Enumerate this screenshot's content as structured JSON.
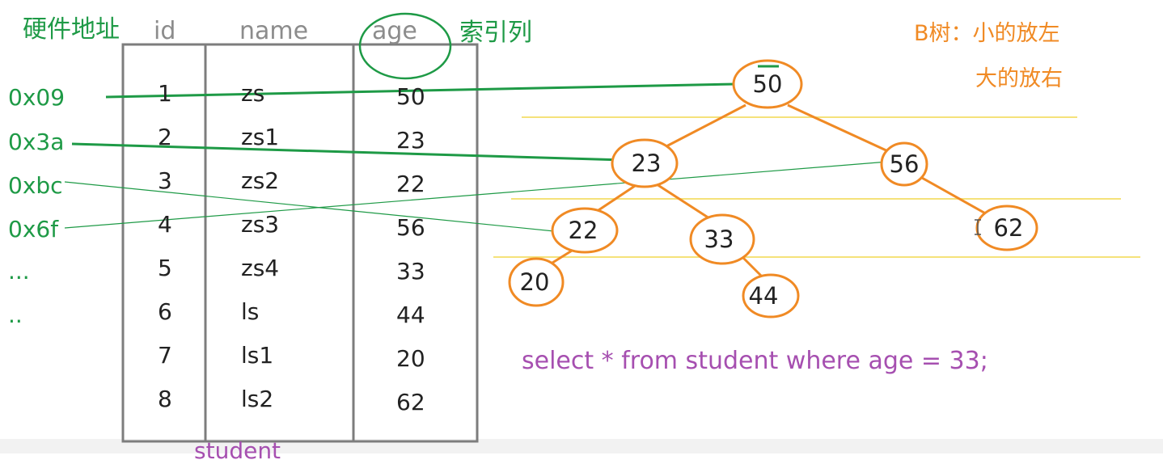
{
  "labels": {
    "hardware_address": "硬件地址",
    "index_column": "索引列",
    "btree_rule_line1": "B树：小的放左",
    "btree_rule_line2": "大的放右",
    "table_name": "student"
  },
  "columns": [
    "id",
    "name",
    "age"
  ],
  "rows": [
    {
      "id": "1",
      "name": "zs",
      "age": "50"
    },
    {
      "id": "2",
      "name": "zs1",
      "age": "23"
    },
    {
      "id": "3",
      "name": "zs2",
      "age": "22"
    },
    {
      "id": "4",
      "name": "zs3",
      "age": "56"
    },
    {
      "id": "5",
      "name": "zs4",
      "age": "33"
    },
    {
      "id": "6",
      "name": "ls",
      "age": "44"
    },
    {
      "id": "7",
      "name": "ls1",
      "age": "20"
    },
    {
      "id": "8",
      "name": "ls2",
      "age": "62"
    }
  ],
  "addresses": [
    "0x09",
    "0x3a",
    "0xbc",
    "0x6f",
    "...",
    ".."
  ],
  "tree_nodes": [
    "50",
    "23",
    "56",
    "22",
    "33",
    "62",
    "20",
    "44"
  ],
  "query": "select * from student where age = 33;",
  "colors": {
    "address": "#1e9a46",
    "tree": "#f08a24",
    "query": "#a64fb0",
    "level_lines": "#f5e27a"
  }
}
